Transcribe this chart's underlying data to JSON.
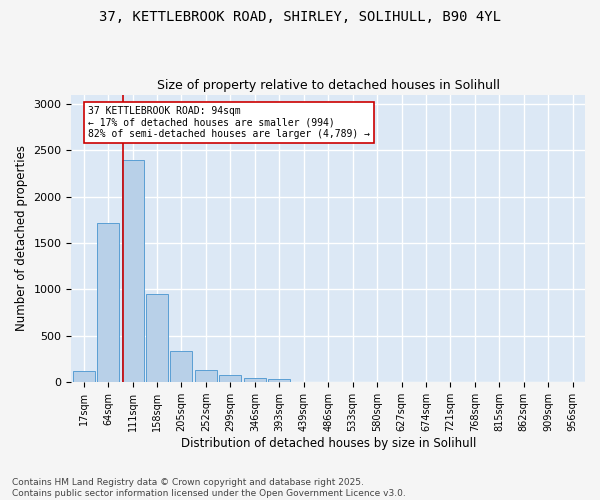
{
  "title_line1": "37, KETTLEBROOK ROAD, SHIRLEY, SOLIHULL, B90 4YL",
  "title_line2": "Size of property relative to detached houses in Solihull",
  "xlabel": "Distribution of detached houses by size in Solihull",
  "ylabel": "Number of detached properties",
  "categories": [
    "17sqm",
    "64sqm",
    "111sqm",
    "158sqm",
    "205sqm",
    "252sqm",
    "299sqm",
    "346sqm",
    "393sqm",
    "439sqm",
    "486sqm",
    "533sqm",
    "580sqm",
    "627sqm",
    "674sqm",
    "721sqm",
    "768sqm",
    "815sqm",
    "862sqm",
    "909sqm",
    "956sqm"
  ],
  "values": [
    120,
    1720,
    2400,
    950,
    340,
    135,
    75,
    45,
    32,
    5,
    2,
    0,
    0,
    0,
    0,
    0,
    0,
    0,
    0,
    0,
    0
  ],
  "bar_color": "#b8d0e8",
  "bar_edge_color": "#5a9fd4",
  "vline_color": "#cc0000",
  "vline_pos": 1.62,
  "annotation_text": "37 KETTLEBROOK ROAD: 94sqm\n← 17% of detached houses are smaller (994)\n82% of semi-detached houses are larger (4,789) →",
  "ylim": [
    0,
    3100
  ],
  "yticks": [
    0,
    500,
    1000,
    1500,
    2000,
    2500,
    3000
  ],
  "plot_bg": "#dce8f5",
  "fig_bg": "#f5f5f5",
  "grid_color": "#ffffff",
  "footer": "Contains HM Land Registry data © Crown copyright and database right 2025.\nContains public sector information licensed under the Open Government Licence v3.0."
}
